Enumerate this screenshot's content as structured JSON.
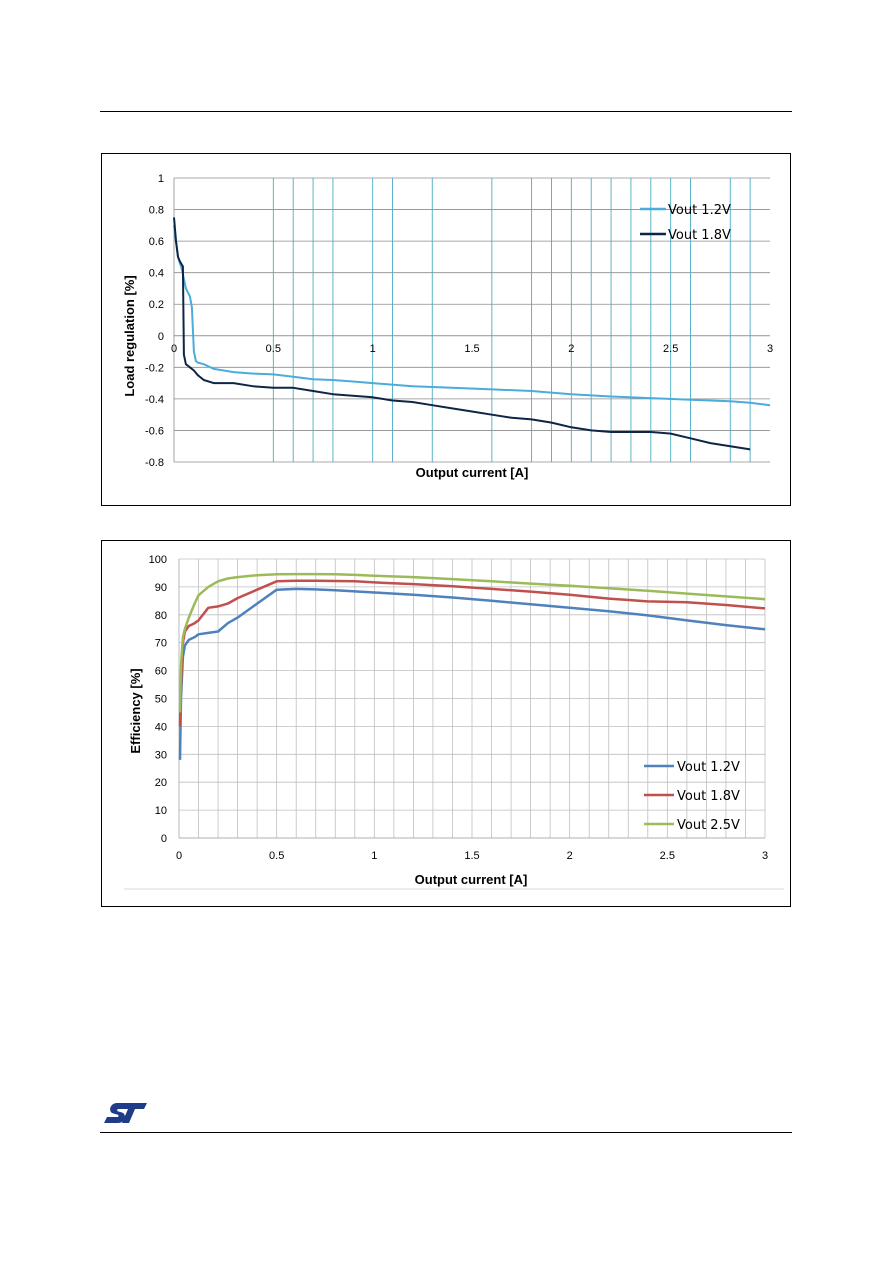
{
  "charts": [
    {
      "type": "line",
      "xlabel": "Output current [A]",
      "ylabel": "Load regulation [%]",
      "xlim": [
        0,
        3
      ],
      "ylim": [
        -0.8,
        1
      ],
      "x_ticks": [
        0,
        0.5,
        1,
        1.5,
        2,
        2.5,
        3
      ],
      "x_tick_labels": [
        "0",
        "0.5",
        "1",
        "1.5",
        "2",
        "2.5",
        "3"
      ],
      "y_ticks": [
        -0.8,
        -0.6,
        -0.4,
        -0.2,
        0,
        0.2,
        0.4,
        0.6,
        0.8,
        1
      ],
      "y_tick_labels": [
        "-0.8",
        "-0.6",
        "-0.4",
        "-0.2",
        "0",
        "0.2",
        "0.4",
        "0.6",
        "0.8",
        "1"
      ],
      "grid_y": [
        -0.8,
        -0.6,
        -0.4,
        -0.2,
        0,
        0.2,
        0.4,
        0.6,
        0.8,
        1
      ],
      "grid_x": [
        0.5,
        0.6,
        0.7,
        0.8,
        1,
        1.1,
        1.3,
        1.6,
        1.8,
        1.9,
        2,
        2.1,
        2.2,
        2.3,
        2.4,
        2.5,
        2.6,
        2.8,
        2.9
      ],
      "grid": true,
      "legend_position": "top-right",
      "series": [
        {
          "name": "Vout 1.2V",
          "color": "#4BACDC",
          "x": [
            0,
            0.02,
            0.04,
            0.06,
            0.08,
            0.09,
            0.1,
            0.11,
            0.12,
            0.15,
            0.2,
            0.3,
            0.4,
            0.5,
            0.6,
            0.7,
            0.8,
            0.9,
            1.0,
            1.2,
            1.4,
            1.6,
            1.8,
            2.0,
            2.2,
            2.4,
            2.6,
            2.8,
            2.9,
            3.0
          ],
          "y": [
            0.7,
            0.5,
            0.42,
            0.3,
            0.25,
            0.18,
            -0.1,
            -0.16,
            -0.17,
            -0.18,
            -0.21,
            -0.23,
            -0.24,
            -0.245,
            -0.26,
            -0.275,
            -0.28,
            -0.29,
            -0.3,
            -0.32,
            -0.33,
            -0.34,
            -0.35,
            -0.37,
            -0.385,
            -0.395,
            -0.405,
            -0.415,
            -0.425,
            -0.44
          ]
        },
        {
          "name": "Vout 1.8V",
          "color": "#0F2546",
          "x": [
            0,
            0.01,
            0.02,
            0.03,
            0.04,
            0.045,
            0.05,
            0.055,
            0.06,
            0.08,
            0.1,
            0.12,
            0.15,
            0.2,
            0.3,
            0.4,
            0.5,
            0.6,
            0.7,
            0.8,
            0.9,
            1.0,
            1.1,
            1.2,
            1.3,
            1.4,
            1.5,
            1.6,
            1.7,
            1.8,
            1.9,
            2.0,
            2.1,
            2.2,
            2.3,
            2.4,
            2.45,
            2.5,
            2.6,
            2.7,
            2.8,
            2.9
          ],
          "y": [
            0.75,
            0.6,
            0.5,
            0.47,
            0.45,
            0.44,
            -0.12,
            -0.15,
            -0.18,
            -0.2,
            -0.22,
            -0.25,
            -0.28,
            -0.3,
            -0.3,
            -0.32,
            -0.33,
            -0.33,
            -0.35,
            -0.37,
            -0.38,
            -0.39,
            -0.41,
            -0.42,
            -0.44,
            -0.46,
            -0.48,
            -0.5,
            -0.52,
            -0.53,
            -0.55,
            -0.58,
            -0.6,
            -0.61,
            -0.61,
            -0.61,
            -0.615,
            -0.62,
            -0.65,
            -0.68,
            -0.7,
            -0.72
          ]
        }
      ]
    },
    {
      "type": "line",
      "xlabel": "Output current [A]",
      "ylabel": "Efficiency [%]",
      "xlim": [
        0,
        3
      ],
      "ylim": [
        0,
        100
      ],
      "x_ticks": [
        0,
        0.5,
        1,
        1.5,
        2,
        2.5,
        3
      ],
      "x_tick_labels": [
        "0",
        "0.5",
        "1",
        "1.5",
        "2",
        "2.5",
        "3"
      ],
      "y_ticks": [
        0,
        10,
        20,
        30,
        40,
        50,
        60,
        70,
        80,
        90,
        100
      ],
      "y_tick_labels": [
        "0",
        "10",
        "20",
        "30",
        "40",
        "50",
        "60",
        "70",
        "80",
        "90",
        "100"
      ],
      "grid_y": [
        0,
        10,
        20,
        30,
        40,
        50,
        60,
        70,
        80,
        90,
        100
      ],
      "grid_x": [
        0.1,
        0.2,
        0.3,
        0.4,
        0.5,
        0.6,
        0.7,
        0.8,
        0.9,
        1.0,
        1.1,
        1.2,
        1.3,
        1.4,
        1.5,
        1.6,
        1.7,
        1.8,
        1.9,
        2.0,
        2.1,
        2.2,
        2.3,
        2.4,
        2.5,
        2.6,
        2.7,
        2.8,
        2.9,
        3.0
      ],
      "grid": true,
      "legend_position": "bottom-right",
      "series": [
        {
          "name": "Vout 1.2V",
          "color": "#4F81BD",
          "x": [
            0.005,
            0.01,
            0.02,
            0.03,
            0.05,
            0.08,
            0.1,
            0.15,
            0.2,
            0.25,
            0.3,
            0.4,
            0.5,
            0.6,
            0.7,
            0.8,
            0.9,
            1.0,
            1.2,
            1.4,
            1.6,
            1.8,
            2.0,
            2.2,
            2.4,
            2.6,
            2.8,
            3.0
          ],
          "y": [
            28,
            50,
            65,
            69,
            71,
            72,
            73,
            73.5,
            74,
            77,
            79,
            84,
            89,
            89.3,
            89.1,
            88.8,
            88.4,
            88,
            87.2,
            86.2,
            85,
            83.8,
            82.5,
            81.3,
            79.8,
            78,
            76.3,
            74.8
          ]
        },
        {
          "name": "Vout 1.8V",
          "color": "#C0504D",
          "x": [
            0.005,
            0.01,
            0.02,
            0.03,
            0.05,
            0.08,
            0.1,
            0.15,
            0.2,
            0.25,
            0.3,
            0.4,
            0.5,
            0.6,
            0.7,
            0.8,
            0.9,
            1.0,
            1.2,
            1.4,
            1.6,
            1.8,
            2.0,
            2.2,
            2.4,
            2.6,
            2.8,
            3.0
          ],
          "y": [
            40,
            55,
            70,
            74,
            76,
            77,
            78,
            82.5,
            83,
            84,
            86,
            89,
            92,
            92.2,
            92.2,
            92.1,
            92,
            91.6,
            91,
            90.2,
            89.3,
            88.3,
            87.2,
            85.8,
            84.8,
            84.5,
            83.5,
            82.3
          ]
        },
        {
          "name": "Vout 2.5V",
          "color": "#9BBB59",
          "x": [
            0.005,
            0.01,
            0.02,
            0.03,
            0.05,
            0.08,
            0.1,
            0.15,
            0.2,
            0.25,
            0.3,
            0.4,
            0.5,
            0.6,
            0.7,
            0.8,
            0.9,
            1.0,
            1.2,
            1.4,
            1.6,
            1.8,
            2.0,
            2.2,
            2.4,
            2.6,
            2.8,
            3.0
          ],
          "y": [
            45,
            62,
            72,
            75,
            79,
            84,
            87,
            90,
            92,
            93,
            93.5,
            94.2,
            94.5,
            94.6,
            94.6,
            94.5,
            94.3,
            94,
            93.5,
            92.8,
            92,
            91.2,
            90.4,
            89.5,
            88.6,
            87.6,
            86.6,
            85.6
          ]
        }
      ]
    }
  ],
  "logo": {
    "text": "ST",
    "color": "#1F3C88"
  }
}
